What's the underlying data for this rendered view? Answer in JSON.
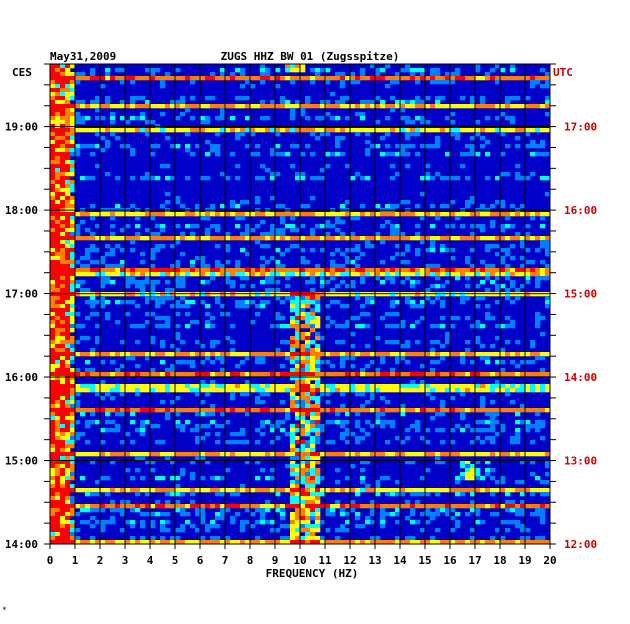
{
  "chart_data": {
    "type": "heatmap",
    "date": "May31,2009",
    "title": "ZUGS HHZ BW 01 (Zugsspitze)",
    "xlabel": "FREQUENCY (HZ)",
    "xlim": [
      0,
      20
    ],
    "x_ticks": [
      "0",
      "1",
      "2",
      "3",
      "4",
      "5",
      "6",
      "7",
      "8",
      "9",
      "10",
      "11",
      "12",
      "13",
      "14",
      "15",
      "16",
      "17",
      "18",
      "19",
      "20"
    ],
    "left_axis_label": "CES",
    "right_axis_label": "UTC",
    "ylim_cest": [
      "14:00",
      "19:45"
    ],
    "left_ticks": [
      "19:00",
      "18:00",
      "17:00",
      "16:00",
      "15:00",
      "14:00"
    ],
    "right_ticks": [
      "17:00",
      "16:00",
      "15:00",
      "14:00",
      "13:00",
      "12:00"
    ],
    "grid": true,
    "colormap": [
      "#000080",
      "#0000ff",
      "#0080ff",
      "#00ffff",
      "#ffff00",
      "#ff8000",
      "#ff0000"
    ],
    "features": [
      {
        "freq_hz": [
          0,
          1
        ],
        "time_span": "14:00-19:45",
        "intensity": "high"
      },
      {
        "freq_hz": [
          9.7,
          10.8
        ],
        "time_span": "14:00-17:00",
        "intensity": "high"
      },
      {
        "freq_hz": [
          9.5,
          10.2
        ],
        "time_span": "19:40-19:45",
        "intensity": "high"
      },
      {
        "freq_hz": [
          16.5,
          17.5
        ],
        "time_span": "14:45-15:00",
        "intensity": "medium"
      }
    ]
  },
  "colors": {
    "left_axis_text": "#000000",
    "right_axis_text": "#cc0000",
    "grid": "#000000"
  },
  "bottom_mark": "∗"
}
